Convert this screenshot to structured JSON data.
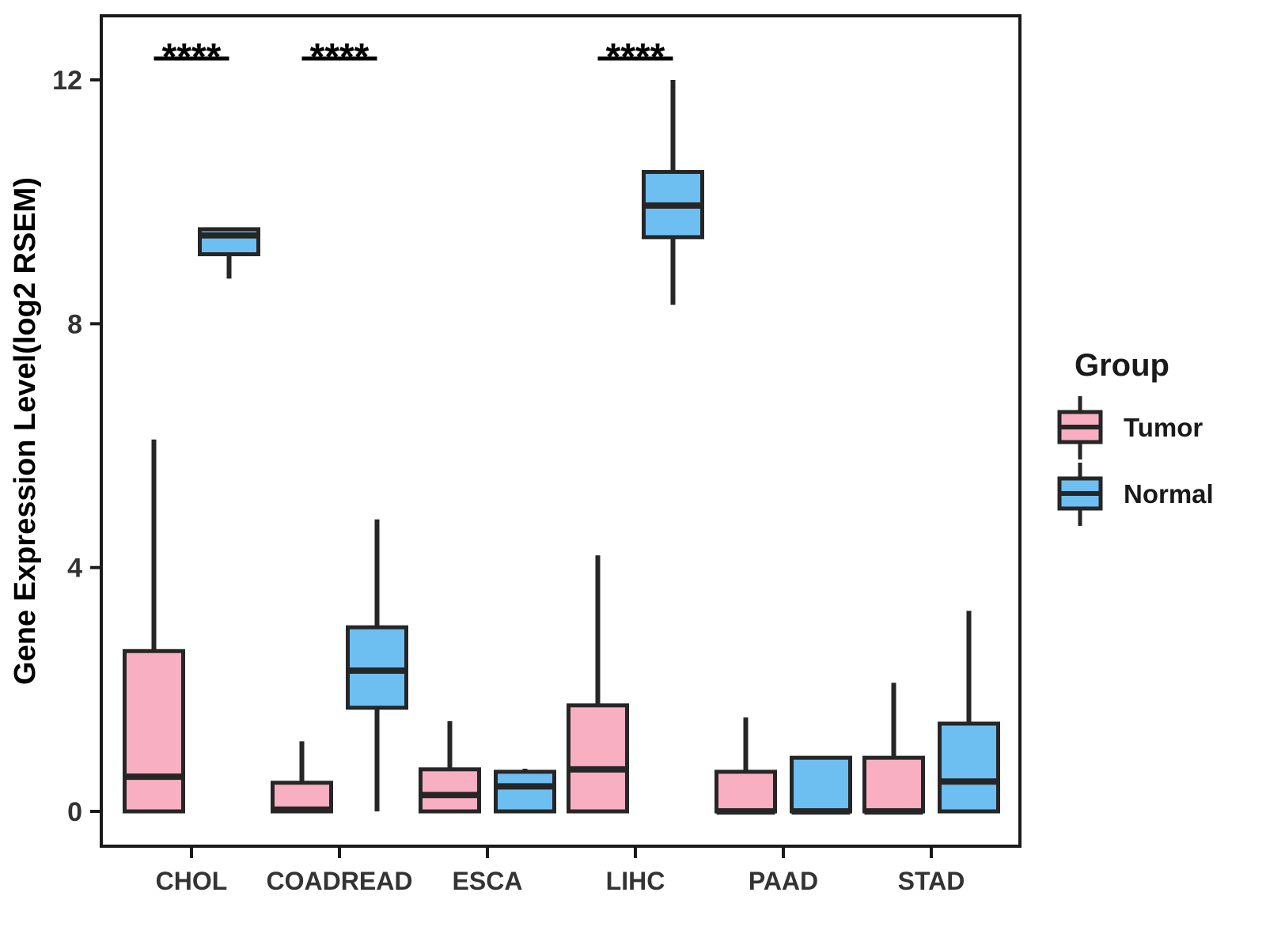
{
  "figure": {
    "background": "#ffffff"
  },
  "colors": {
    "tumor": "#F9AFC2",
    "normal": "#6DBFF2",
    "box_stroke": "#262626",
    "axis": "#1a1a1a",
    "tick_text": "#333333",
    "title_text": "#000000"
  },
  "legend": {
    "title": "Group",
    "items": [
      {
        "key": "tumor",
        "label": "Tumor"
      },
      {
        "key": "normal",
        "label": "Normal"
      }
    ]
  },
  "chart_data": {
    "type": "boxplot",
    "title": "",
    "xlabel": "",
    "ylabel": "Gene Expression Level(log2 RSEM)",
    "ylim": [
      -0.6,
      13.0
    ],
    "yticks": [
      0,
      4,
      8,
      12
    ],
    "grid": false,
    "legend_position": "right",
    "categories": [
      "CHOL",
      "COADREAD",
      "ESCA",
      "LIHC",
      "PAAD",
      "STAD"
    ],
    "series": [
      {
        "name": "Tumor",
        "color_key": "tumor",
        "boxes_format": [
          "min",
          "q1",
          "median",
          "q3",
          "max"
        ],
        "boxes": [
          [
            0,
            0,
            0.57,
            2.63,
            6.1
          ],
          [
            0,
            0,
            0.03,
            0.47,
            1.15
          ],
          [
            0,
            0,
            0.27,
            0.69,
            1.48
          ],
          [
            0,
            0,
            0.69,
            1.74,
            4.2
          ],
          [
            0,
            0,
            0.0,
            0.65,
            1.54
          ],
          [
            0,
            0,
            0.0,
            0.88,
            2.11
          ]
        ]
      },
      {
        "name": "Normal",
        "color_key": "normal",
        "boxes_format": [
          "min",
          "q1",
          "median",
          "q3",
          "max"
        ],
        "boxes": [
          [
            8.74,
            9.14,
            9.45,
            9.55,
            9.55
          ],
          [
            0.0,
            1.7,
            2.31,
            3.02,
            4.79
          ],
          [
            0.0,
            0.0,
            0.41,
            0.65,
            0.7
          ],
          [
            8.31,
            9.42,
            9.94,
            10.49,
            12.0
          ],
          [
            0.0,
            0.0,
            0.0,
            0.88,
            0.88
          ],
          [
            0.0,
            0.0,
            0.49,
            1.44,
            3.29
          ]
        ]
      }
    ],
    "significance": [
      {
        "category": "CHOL",
        "label": "****"
      },
      {
        "category": "COADREAD",
        "label": "****"
      },
      {
        "category": "LIHC",
        "label": "****"
      }
    ]
  }
}
